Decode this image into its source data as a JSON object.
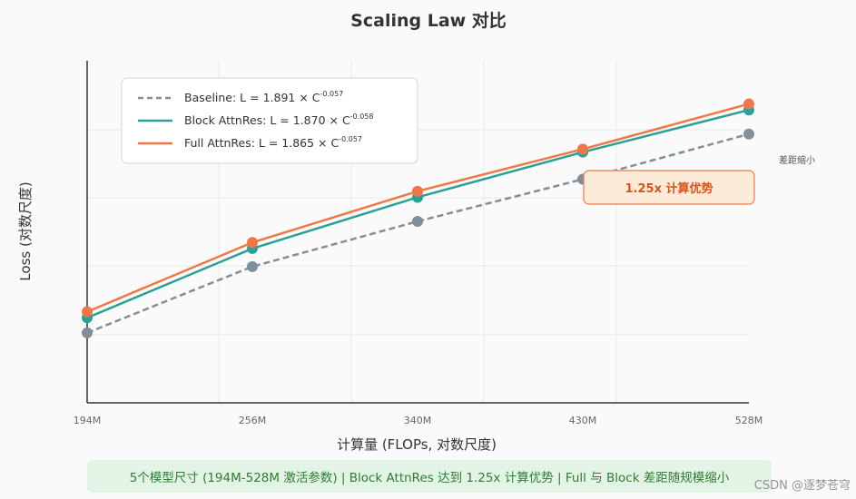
{
  "chart_data": {
    "type": "line",
    "title": "Scaling Law 对比",
    "xlabel": "计算量 (FLOPs, 对数尺度)",
    "ylabel": "Loss (对数尺度)",
    "categories": [
      "194M",
      "256M",
      "340M",
      "430M",
      "528M"
    ],
    "ylim": [
      0,
      100
    ],
    "series": [
      {
        "name": "Baseline",
        "legend_main": "Baseline: L = 1.891 × C",
        "legend_exp": "-0.057",
        "color": "#7f8f9c",
        "dash": true,
        "values": [
          16,
          38,
          53,
          67,
          82
        ]
      },
      {
        "name": "Block AttnRes",
        "legend_main": "Block AttnRes: L = 1.870 × C",
        "legend_exp": "-0.058",
        "color": "#2aa198",
        "dash": false,
        "values": [
          21,
          44,
          61,
          76,
          90
        ]
      },
      {
        "name": "Full AttnRes",
        "legend_main": "Full AttnRes: L = 1.865 × C",
        "legend_exp": "-0.057",
        "color": "#f07848",
        "dash": false,
        "values": [
          23,
          46,
          63,
          77,
          92
        ]
      }
    ],
    "annotations": {
      "callout": "1.25x 计算优势",
      "side_note": "差距缩小"
    }
  },
  "footer": {
    "text": "5个模型尺寸 (194M-528M 激活参数) | Block AttnRes 达到 1.25x 计算优势 | Full 与 Block 差距随规模缩小"
  },
  "watermark": "CSDN @逐梦苍穹"
}
